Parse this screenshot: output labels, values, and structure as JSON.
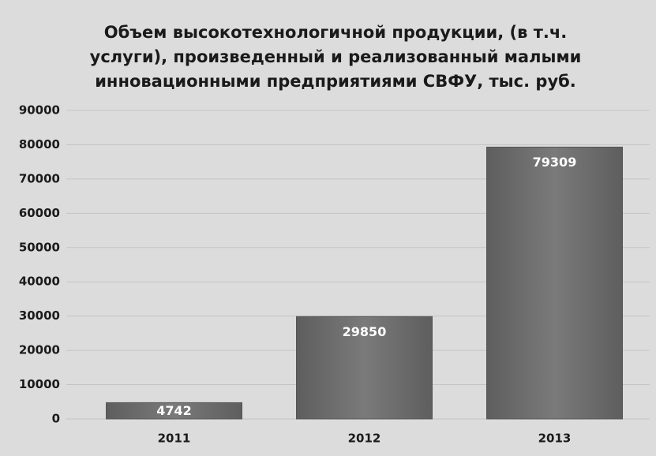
{
  "chart_data": {
    "type": "bar",
    "title": "Объем высокотехнологичной продукции, (в т.ч. услуги), произведенный и реализованный малыми инновационными предприятиями СВФУ, тыс. руб.",
    "categories": [
      "2011",
      "2012",
      "2013"
    ],
    "values": [
      4742,
      29850,
      79309
    ],
    "color": "#6e6e6e",
    "ylim": [
      0,
      90000
    ],
    "yticks": [
      0,
      10000,
      20000,
      30000,
      40000,
      50000,
      60000,
      70000,
      80000,
      90000
    ],
    "grid": true
  }
}
